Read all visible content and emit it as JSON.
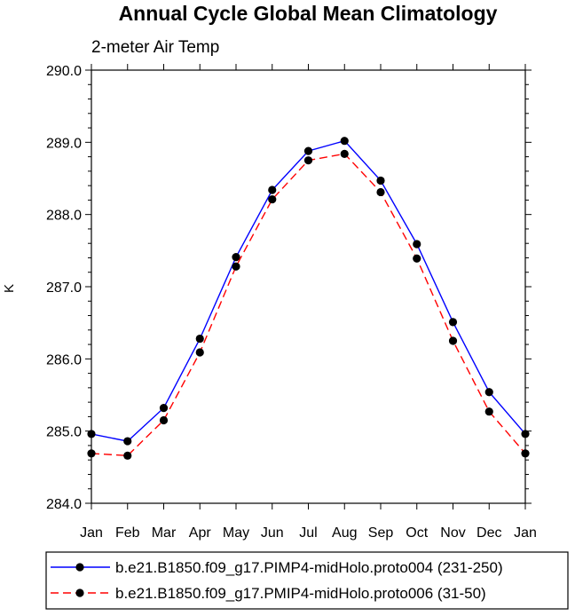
{
  "chart_data": {
    "type": "line",
    "title": "Annual Cycle Global Mean Climatology",
    "subtitle": "2-meter Air Temp",
    "ylabel": "K",
    "xlabel": "",
    "ylim": [
      284.0,
      290.0
    ],
    "yticks": [
      "284.0",
      "285.0",
      "286.0",
      "287.0",
      "288.0",
      "289.0",
      "290.0"
    ],
    "categories": [
      "Jan",
      "Feb",
      "Mar",
      "Apr",
      "May",
      "Jun",
      "Jul",
      "Aug",
      "Sep",
      "Oct",
      "Nov",
      "Dec",
      "Jan"
    ],
    "series": [
      {
        "name": "b.e21.B1850.f09_g17.PIMP4-midHolo.proto004 (231-250)",
        "color": "#0000ff",
        "dash": "solid",
        "marker": "filled-circle",
        "values": [
          284.96,
          284.86,
          285.32,
          286.28,
          287.41,
          288.34,
          288.88,
          289.02,
          288.47,
          287.59,
          286.51,
          285.54,
          284.96
        ]
      },
      {
        "name": "b.e21.B1850.f09_g17.PMIP4-midHolo.proto006 (31-50)",
        "color": "#ff0000",
        "dash": "dashed",
        "marker": "filled-circle",
        "values": [
          284.69,
          284.66,
          285.15,
          286.09,
          287.28,
          288.21,
          288.75,
          288.84,
          288.31,
          287.39,
          286.25,
          285.27,
          284.69
        ]
      }
    ],
    "grid": false,
    "legend_position": "bottom"
  }
}
